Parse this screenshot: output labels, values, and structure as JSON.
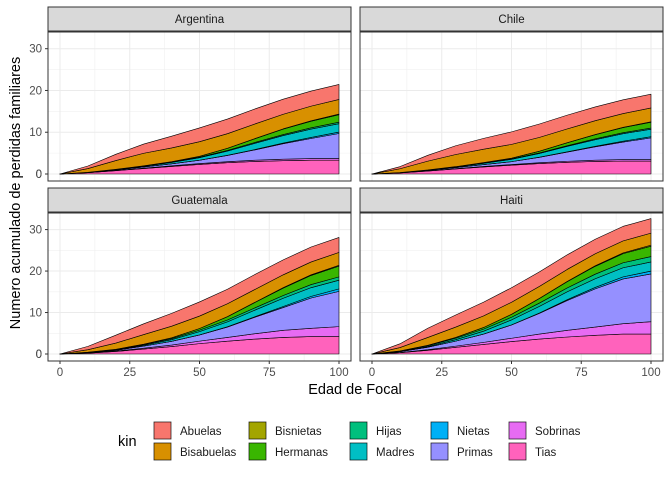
{
  "chart_data": {
    "type": "area",
    "stacked": true,
    "xlabel": "Edad de Focal",
    "ylabel": "Numero acumulado de perdidas familiares",
    "xlim": [
      0,
      100
    ],
    "ylim": [
      0,
      34
    ],
    "xticks": [
      0,
      25,
      50,
      75,
      100
    ],
    "yticks": [
      0,
      10,
      20,
      30
    ],
    "x": [
      0,
      10,
      20,
      30,
      40,
      50,
      60,
      70,
      80,
      90,
      100
    ],
    "legend": {
      "title": "kin",
      "position": "bottom",
      "entries": [
        {
          "name": "Abuelas",
          "color": "#F8766D"
        },
        {
          "name": "Bisabuelas",
          "color": "#D89000"
        },
        {
          "name": "Bisnietas",
          "color": "#A3A500"
        },
        {
          "name": "Hermanas",
          "color": "#39B600"
        },
        {
          "name": "Hijas",
          "color": "#00BF7D"
        },
        {
          "name": "Madres",
          "color": "#00BFC4"
        },
        {
          "name": "Nietas",
          "color": "#00B0F6"
        },
        {
          "name": "Primas",
          "color": "#9590FF"
        },
        {
          "name": "Sobrinas",
          "color": "#E76BF3"
        },
        {
          "name": "Tias",
          "color": "#FF62BC"
        }
      ]
    },
    "panels": [
      {
        "title": "Argentina",
        "series": [
          {
            "name": "Tias",
            "values": [
              0,
              0.3,
              0.8,
              1.3,
              1.8,
              2.3,
              2.7,
              3.0,
              3.2,
              3.3,
              3.3
            ]
          },
          {
            "name": "Sobrinas",
            "values": [
              0,
              0.02,
              0.05,
              0.1,
              0.15,
              0.2,
              0.25,
              0.3,
              0.35,
              0.4,
              0.4
            ]
          },
          {
            "name": "Primas",
            "values": [
              0,
              0.05,
              0.15,
              0.3,
              0.5,
              0.8,
              1.5,
              2.5,
              3.7,
              4.8,
              6.0
            ]
          },
          {
            "name": "Nietas",
            "values": [
              0,
              0,
              0,
              0,
              0,
              0,
              0.03,
              0.08,
              0.15,
              0.25,
              0.35
            ]
          },
          {
            "name": "Madres",
            "values": [
              0,
              0.02,
              0.05,
              0.15,
              0.3,
              0.6,
              1.0,
              1.5,
              1.8,
              2.0,
              2.0
            ]
          },
          {
            "name": "Hijas",
            "values": [
              0,
              0.02,
              0.05,
              0.07,
              0.1,
              0.13,
              0.17,
              0.2,
              0.25,
              0.3,
              0.35
            ]
          },
          {
            "name": "Hermanas",
            "values": [
              0,
              0,
              0.02,
              0.05,
              0.1,
              0.2,
              0.5,
              0.9,
              1.3,
              1.6,
              1.8
            ]
          },
          {
            "name": "Bisnietas",
            "values": [
              0,
              0,
              0,
              0,
              0,
              0,
              0.01,
              0.03,
              0.06,
              0.1,
              0.15
            ]
          },
          {
            "name": "Bisabuelas",
            "values": [
              0,
              0.9,
              2.1,
              3.0,
              3.3,
              3.5,
              3.5,
              3.5,
              3.5,
              3.5,
              3.5
            ]
          },
          {
            "name": "Abuelas",
            "values": [
              0,
              0.6,
              1.5,
              2.2,
              2.8,
              3.3,
              3.5,
              3.6,
              3.6,
              3.6,
              3.6
            ]
          }
        ]
      },
      {
        "title": "Chile",
        "series": [
          {
            "name": "Tias",
            "values": [
              0,
              0.25,
              0.7,
              1.2,
              1.7,
              2.1,
              2.5,
              2.8,
              3.0,
              3.1,
              3.1
            ]
          },
          {
            "name": "Sobrinas",
            "values": [
              0,
              0.02,
              0.05,
              0.08,
              0.12,
              0.16,
              0.2,
              0.25,
              0.3,
              0.35,
              0.35
            ]
          },
          {
            "name": "Primas",
            "values": [
              0,
              0.05,
              0.12,
              0.25,
              0.45,
              0.7,
              1.3,
              2.2,
              3.2,
              4.2,
              5.2
            ]
          },
          {
            "name": "Nietas",
            "values": [
              0,
              0,
              0,
              0,
              0,
              0,
              0.03,
              0.07,
              0.12,
              0.2,
              0.28
            ]
          },
          {
            "name": "Madres",
            "values": [
              0,
              0.02,
              0.05,
              0.13,
              0.28,
              0.55,
              0.9,
              1.3,
              1.6,
              1.8,
              1.8
            ]
          },
          {
            "name": "Hijas",
            "values": [
              0,
              0.02,
              0.04,
              0.06,
              0.08,
              0.1,
              0.13,
              0.16,
              0.2,
              0.25,
              0.28
            ]
          },
          {
            "name": "Hermanas",
            "values": [
              0,
              0,
              0.02,
              0.05,
              0.1,
              0.18,
              0.4,
              0.7,
              1.0,
              1.2,
              1.4
            ]
          },
          {
            "name": "Bisnietas",
            "values": [
              0,
              0,
              0,
              0,
              0,
              0,
              0.01,
              0.02,
              0.04,
              0.07,
              0.1
            ]
          },
          {
            "name": "Bisabuelas",
            "values": [
              0,
              0.9,
              2.1,
              2.9,
              3.2,
              3.3,
              3.3,
              3.3,
              3.3,
              3.3,
              3.3
            ]
          },
          {
            "name": "Abuelas",
            "values": [
              0,
              0.5,
              1.4,
              2.1,
              2.6,
              3.0,
              3.2,
              3.3,
              3.3,
              3.3,
              3.3
            ]
          }
        ]
      },
      {
        "title": "Guatemala",
        "series": [
          {
            "name": "Tias",
            "values": [
              0,
              0.2,
              0.6,
              1.2,
              1.8,
              2.5,
              3.1,
              3.6,
              4.0,
              4.2,
              4.2
            ]
          },
          {
            "name": "Sobrinas",
            "values": [
              0,
              0.05,
              0.1,
              0.2,
              0.35,
              0.6,
              0.9,
              1.3,
              1.7,
              2.0,
              2.4
            ]
          },
          {
            "name": "Primas",
            "values": [
              0,
              0.1,
              0.2,
              0.5,
              0.9,
              1.5,
              2.5,
              4.0,
              5.5,
              7.3,
              8.5
            ]
          },
          {
            "name": "Nietas",
            "values": [
              0,
              0,
              0,
              0,
              0,
              0,
              0.05,
              0.12,
              0.25,
              0.4,
              0.6
            ]
          },
          {
            "name": "Madres",
            "values": [
              0,
              0.02,
              0.08,
              0.2,
              0.4,
              0.8,
              1.2,
              1.6,
              2.0,
              2.1,
              2.1
            ]
          },
          {
            "name": "Hijas",
            "values": [
              0,
              0.05,
              0.1,
              0.18,
              0.25,
              0.35,
              0.45,
              0.55,
              0.65,
              0.75,
              0.8
            ]
          },
          {
            "name": "Hermanas",
            "values": [
              0,
              0.02,
              0.05,
              0.1,
              0.2,
              0.4,
              0.8,
              1.3,
              1.8,
              2.2,
              2.6
            ]
          },
          {
            "name": "Bisnietas",
            "values": [
              0,
              0,
              0,
              0,
              0,
              0,
              0.02,
              0.05,
              0.1,
              0.15,
              0.2
            ]
          },
          {
            "name": "Bisabuelas",
            "values": [
              0,
              0.6,
              1.5,
              2.3,
              2.8,
              3.0,
              3.1,
              3.1,
              3.1,
              3.1,
              3.1
            ]
          },
          {
            "name": "Abuelas",
            "values": [
              0,
              0.8,
              1.9,
              2.6,
              3.1,
              3.4,
              3.5,
              3.6,
              3.6,
              3.6,
              3.6
            ]
          }
        ]
      },
      {
        "title": "Haiti",
        "series": [
          {
            "name": "Tias",
            "values": [
              0,
              0.3,
              0.9,
              1.6,
              2.3,
              3.0,
              3.6,
              4.1,
              4.5,
              4.8,
              4.8
            ]
          },
          {
            "name": "Sobrinas",
            "values": [
              0,
              0.05,
              0.15,
              0.3,
              0.5,
              0.8,
              1.2,
              1.6,
              2.0,
              2.5,
              3.0
            ]
          },
          {
            "name": "Primas",
            "values": [
              0,
              0.2,
              0.6,
              1.2,
              2.0,
              3.2,
              5.0,
              7.2,
              9.2,
              10.8,
              11.5
            ]
          },
          {
            "name": "Nietas",
            "values": [
              0,
              0,
              0,
              0,
              0,
              0.02,
              0.08,
              0.2,
              0.35,
              0.5,
              0.7
            ]
          },
          {
            "name": "Madres",
            "values": [
              0,
              0.05,
              0.15,
              0.35,
              0.7,
              1.2,
              1.6,
              1.9,
              2.1,
              2.2,
              2.2
            ]
          },
          {
            "name": "Hijas",
            "values": [
              0,
              0.1,
              0.2,
              0.35,
              0.5,
              0.65,
              0.8,
              0.95,
              1.1,
              1.2,
              1.3
            ]
          },
          {
            "name": "Hermanas",
            "values": [
              0,
              0.05,
              0.1,
              0.2,
              0.4,
              0.7,
              1.1,
              1.5,
              1.9,
              2.2,
              2.5
            ]
          },
          {
            "name": "Bisnietas",
            "values": [
              0,
              0,
              0,
              0,
              0,
              0.01,
              0.03,
              0.07,
              0.12,
              0.18,
              0.25
            ]
          },
          {
            "name": "Bisabuelas",
            "values": [
              0,
              0.8,
              1.9,
              2.5,
              2.8,
              2.9,
              2.9,
              2.9,
              2.9,
              2.9,
              2.9
            ]
          },
          {
            "name": "Abuelas",
            "values": [
              0,
              0.9,
              2.2,
              2.9,
              3.3,
              3.5,
              3.5,
              3.5,
              3.5,
              3.5,
              3.5
            ]
          }
        ]
      }
    ]
  }
}
